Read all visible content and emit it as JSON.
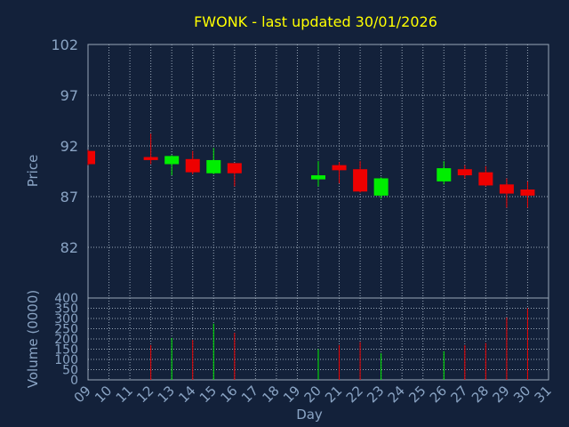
{
  "chart_data": {
    "type": "candlestick",
    "title": "FWONK - last updated 30/01/2026",
    "xlabel": "Day",
    "price_panel": {
      "ylabel": "Price",
      "yticks": [
        82,
        87,
        92,
        97,
        102
      ],
      "ylim": [
        77,
        102
      ]
    },
    "volume_panel": {
      "ylabel": "Volume (0000)",
      "yticks": [
        0,
        50,
        100,
        150,
        200,
        250,
        300,
        350,
        400
      ],
      "ylim": [
        0,
        400
      ]
    },
    "x_tick_labels": [
      "09",
      "10",
      "11",
      "12",
      "13",
      "14",
      "15",
      "16",
      "17",
      "18",
      "19",
      "20",
      "21",
      "22",
      "23",
      "24",
      "25",
      "26",
      "27",
      "28",
      "29",
      "30",
      "31"
    ],
    "candles": [
      {
        "day": "09",
        "open": 91.5,
        "close": 90.2,
        "high": 91.6,
        "low": 90.1,
        "volume": null
      },
      {
        "day": "12",
        "open": 90.9,
        "close": 90.6,
        "high": 93.2,
        "low": 90.2,
        "volume": 170
      },
      {
        "day": "13",
        "open": 90.2,
        "close": 91.0,
        "high": 91.1,
        "low": 89.1,
        "volume": 205
      },
      {
        "day": "14",
        "open": 90.7,
        "close": 89.4,
        "high": 91.5,
        "low": 89.2,
        "volume": 195
      },
      {
        "day": "15",
        "open": 89.3,
        "close": 90.6,
        "high": 91.8,
        "low": 89.2,
        "volume": 275
      },
      {
        "day": "16",
        "open": 90.3,
        "close": 89.3,
        "high": 90.3,
        "low": 88.0,
        "volume": 230
      },
      {
        "day": "20",
        "open": 88.7,
        "close": 89.1,
        "high": 90.5,
        "low": 88.0,
        "volume": 150
      },
      {
        "day": "21",
        "open": 90.1,
        "close": 89.6,
        "high": 90.4,
        "low": 88.3,
        "volume": 170
      },
      {
        "day": "22",
        "open": 89.7,
        "close": 87.5,
        "high": 90.5,
        "low": 87.4,
        "volume": 185
      },
      {
        "day": "23",
        "open": 87.1,
        "close": 88.8,
        "high": 88.9,
        "low": 86.8,
        "volume": 130
      },
      {
        "day": "26",
        "open": 88.5,
        "close": 89.8,
        "high": 90.5,
        "low": 88.2,
        "volume": 140
      },
      {
        "day": "27",
        "open": 89.7,
        "close": 89.1,
        "high": 90.1,
        "low": 88.8,
        "volume": 170
      },
      {
        "day": "28",
        "open": 89.4,
        "close": 88.1,
        "high": 90.0,
        "low": 88.0,
        "volume": 180
      },
      {
        "day": "29",
        "open": 88.2,
        "close": 87.3,
        "high": 88.8,
        "low": 85.9,
        "volume": 305
      },
      {
        "day": "30",
        "open": 87.7,
        "close": 87.1,
        "high": 88.5,
        "low": 85.9,
        "volume": 350
      }
    ],
    "colors": {
      "background": "#13213a",
      "up": "#00ee00",
      "down": "#ee0000",
      "title": "#ffff00",
      "text": "#8aa4c4",
      "grid": "#9aa8b8"
    },
    "grid": true
  }
}
